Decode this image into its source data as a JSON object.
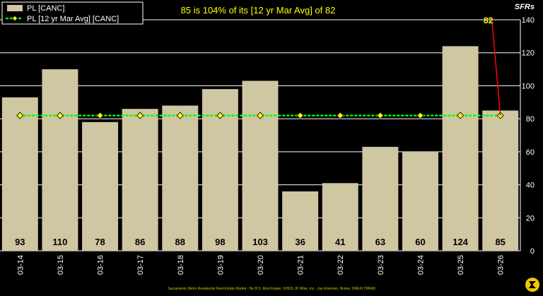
{
  "chart_data": {
    "type": "bar",
    "categories": [
      "03-14",
      "03-15",
      "03-16",
      "03-17",
      "03-18",
      "03-19",
      "03-20",
      "03-21",
      "03-22",
      "03-23",
      "03-24",
      "03-25",
      "03-26"
    ],
    "series": [
      {
        "name": "PL [CANC]",
        "type": "bar",
        "values": [
          93,
          110,
          78,
          86,
          88,
          98,
          103,
          36,
          41,
          63,
          60,
          124,
          85
        ],
        "color": "#cfc6a2"
      },
      {
        "name": "PL [12 yr Mar Avg] [CANC]",
        "type": "line",
        "values": [
          82,
          82,
          82,
          82,
          82,
          82,
          82,
          82,
          82,
          82,
          82,
          82,
          82
        ],
        "color": "#00ff00",
        "marker_color": "#ffff00"
      }
    ],
    "title": "85 is 104% of its [12 yr Mar Avg] of 82",
    "ylabel": "SFRs",
    "ylim": [
      0,
      140
    ],
    "yticks": [
      0,
      20,
      40,
      60,
      80,
      100,
      120,
      140
    ],
    "grid": true,
    "legend": "top-left",
    "callout": {
      "label": "82",
      "category": "03-26"
    }
  },
  "footer": "Sacramento Metro Residential Real Estate Market - No B.S. Real Estate, ©2026 JD Wise, Inc - Jay Emerson, Broker, DRE#1798468",
  "colors": {
    "background": "#000000",
    "grid": "#ffffff",
    "title": "#ffff00",
    "callout_line": "#ff0000"
  }
}
